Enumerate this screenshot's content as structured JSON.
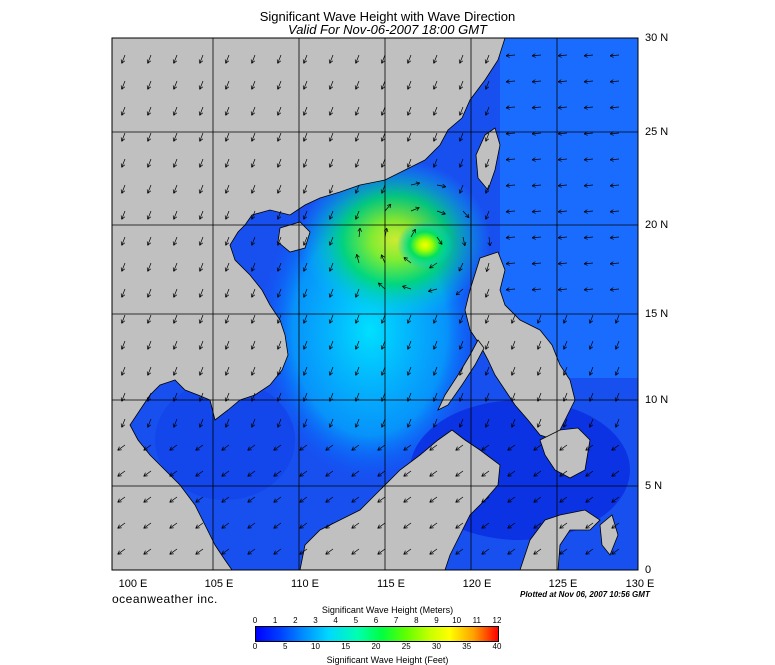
{
  "title": "Significant Wave Height with Wave Direction",
  "subtitle": "Valid For Nov-06-2007 18:00 GMT",
  "lon_labels": [
    "100 E",
    "105 E",
    "110 E",
    "115 E",
    "120 E",
    "125 E",
    "130 E"
  ],
  "lat_labels": [
    "30 N",
    "25 N",
    "20 N",
    "15 N",
    "10 N",
    "5 N",
    "0"
  ],
  "brand": "oceanweather inc.",
  "plotted": "Plotted at Nov 06, 2007 10:56 GMT",
  "colorbar": {
    "title_meters": "Significant Wave Height (Meters)",
    "title_feet": "Significant Wave Height (Feet)",
    "meters_ticks": [
      "0",
      "1",
      "2",
      "3",
      "4",
      "5",
      "6",
      "7",
      "8",
      "9",
      "10",
      "11",
      "12"
    ],
    "feet_ticks": [
      "0",
      "5",
      "10",
      "15",
      "20",
      "25",
      "30",
      "35",
      "40"
    ],
    "colors": [
      "#0000ff",
      "#0090ff",
      "#00d8ff",
      "#00ff40",
      "#c8ff00",
      "#ffff00",
      "#ff0000"
    ]
  },
  "colors": {
    "land": "#c0c0c0",
    "deep_water": "#0a3cf0",
    "grid": "#000000"
  },
  "wave_max_location": "near 19 N, 117 E"
}
